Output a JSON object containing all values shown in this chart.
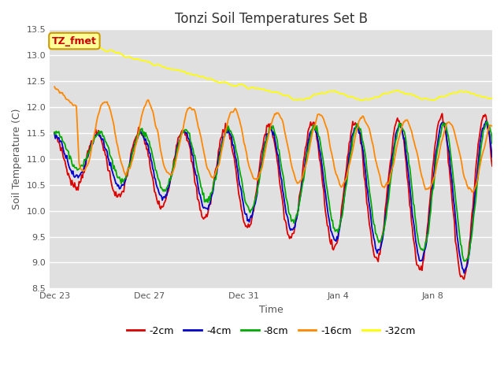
{
  "title": "Tonzi Soil Temperatures Set B",
  "xlabel": "Time",
  "ylabel": "Soil Temperature (C)",
  "ylim": [
    8.5,
    13.5
  ],
  "xlim_days": 18.5,
  "plot_bg_color": "#e0e0e0",
  "series_colors": {
    "-2cm": "#dd0000",
    "-4cm": "#0000cc",
    "-8cm": "#00aa00",
    "-16cm": "#ff8800",
    "-32cm": "#ffff00"
  },
  "legend_labels": [
    "-2cm",
    "-4cm",
    "-8cm",
    "-16cm",
    "-32cm"
  ],
  "annotation_text": "TZ_fmet",
  "annotation_color": "#cc0000",
  "annotation_bg": "#ffff99",
  "annotation_border": "#cc9900",
  "xtick_labels": [
    "Dec 23",
    "Dec 27",
    "Dec 31",
    "Jan 4",
    "Jan 8"
  ],
  "xtick_positions": [
    0,
    4,
    8,
    12,
    16
  ],
  "ytick_labels": [
    "8.5",
    "9.0",
    "9.5",
    "10.0",
    "10.5",
    "11.0",
    "11.5",
    "12.0",
    "12.5",
    "13.0",
    "13.5"
  ],
  "ytick_positions": [
    8.5,
    9.0,
    9.5,
    10.0,
    10.5,
    11.0,
    11.5,
    12.0,
    12.5,
    13.0,
    13.5
  ]
}
